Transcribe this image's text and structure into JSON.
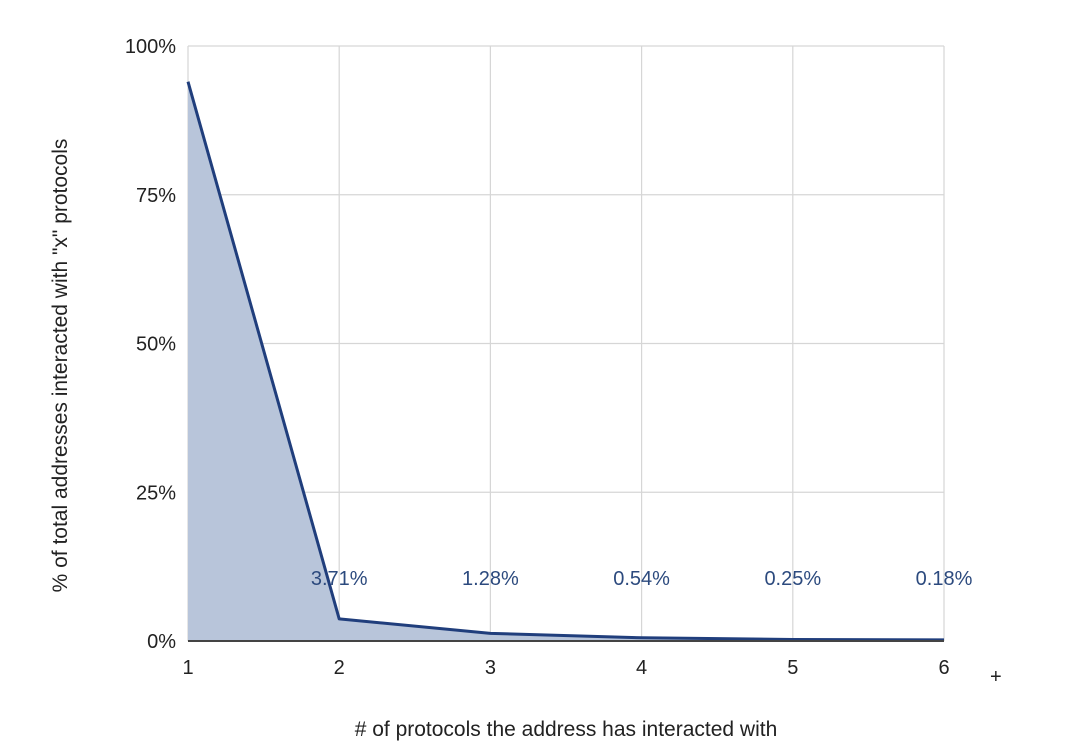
{
  "chart_data": {
    "type": "area",
    "x": [
      1,
      2,
      3,
      4,
      5,
      6
    ],
    "values": [
      94,
      3.71,
      1.28,
      0.54,
      0.25,
      0.18
    ],
    "data_labels": [
      "",
      "3.71%",
      "1.28%",
      "0.54%",
      "0.25%",
      "0.18%"
    ],
    "x_tick_labels": [
      "1",
      "2",
      "3",
      "4",
      "5",
      "6"
    ],
    "x_last_suffix": "+",
    "y_ticks": [
      0,
      25,
      50,
      75,
      100
    ],
    "y_tick_labels": [
      "0%",
      "25%",
      "50%",
      "75%",
      "100%"
    ],
    "ylim": [
      0,
      100
    ],
    "xlim": [
      1,
      6
    ],
    "xlabel": "# of protocols the address has interacted with",
    "ylabel": "% of total addresses interacted with \"x\" protocols",
    "title": "",
    "grid": true,
    "legend": "none",
    "colors": {
      "line": "#203e7c",
      "fill": "#b8c5da",
      "label": "#2c4a7e",
      "grid": "#d6d6d6"
    }
  }
}
